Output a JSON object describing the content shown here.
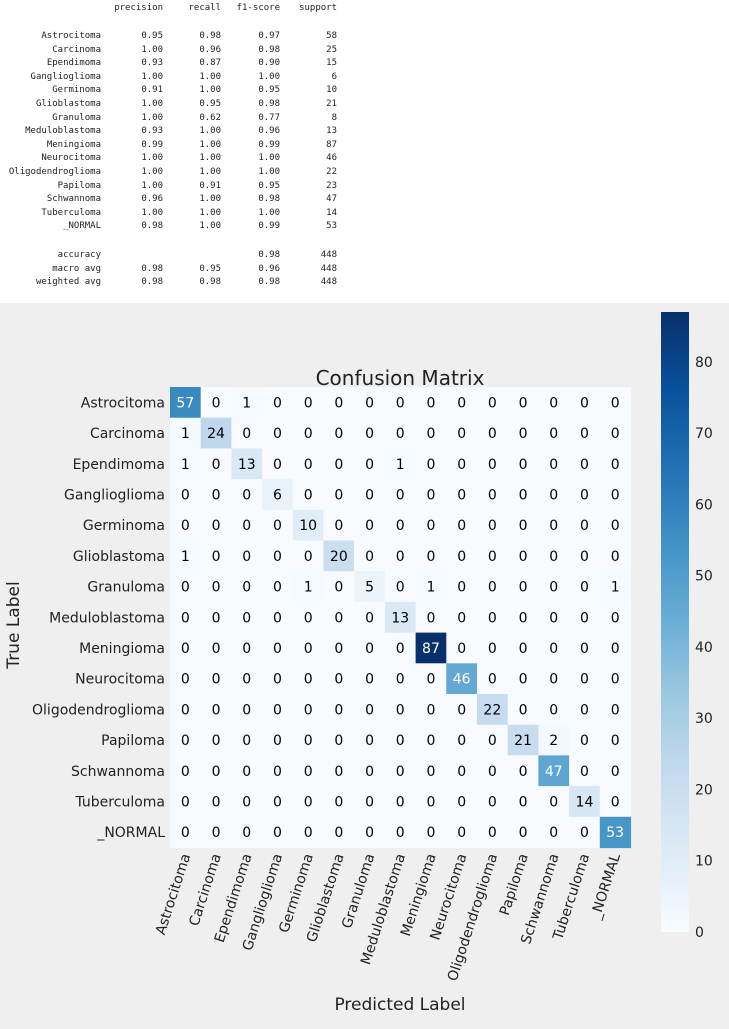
{
  "report": {
    "headers": [
      "precision",
      "recall",
      "f1-score",
      "support"
    ],
    "rows": [
      {
        "label": "Astrocitoma",
        "precision": "0.95",
        "recall": "0.98",
        "f1": "0.97",
        "support": "58"
      },
      {
        "label": "Carcinoma",
        "precision": "1.00",
        "recall": "0.96",
        "f1": "0.98",
        "support": "25"
      },
      {
        "label": "Ependimoma",
        "precision": "0.93",
        "recall": "0.87",
        "f1": "0.90",
        "support": "15"
      },
      {
        "label": "Ganglioglioma",
        "precision": "1.00",
        "recall": "1.00",
        "f1": "1.00",
        "support": "6"
      },
      {
        "label": "Germinoma",
        "precision": "0.91",
        "recall": "1.00",
        "f1": "0.95",
        "support": "10"
      },
      {
        "label": "Glioblastoma",
        "precision": "1.00",
        "recall": "0.95",
        "f1": "0.98",
        "support": "21"
      },
      {
        "label": "Granuloma",
        "precision": "1.00",
        "recall": "0.62",
        "f1": "0.77",
        "support": "8"
      },
      {
        "label": "Meduloblastoma",
        "precision": "0.93",
        "recall": "1.00",
        "f1": "0.96",
        "support": "13"
      },
      {
        "label": "Meningioma",
        "precision": "0.99",
        "recall": "1.00",
        "f1": "0.99",
        "support": "87"
      },
      {
        "label": "Neurocitoma",
        "precision": "1.00",
        "recall": "1.00",
        "f1": "1.00",
        "support": "46"
      },
      {
        "label": "Oligodendroglioma",
        "precision": "1.00",
        "recall": "1.00",
        "f1": "1.00",
        "support": "22"
      },
      {
        "label": "Papiloma",
        "precision": "1.00",
        "recall": "0.91",
        "f1": "0.95",
        "support": "23"
      },
      {
        "label": "Schwannoma",
        "precision": "0.96",
        "recall": "1.00",
        "f1": "0.98",
        "support": "47"
      },
      {
        "label": "Tuberculoma",
        "precision": "1.00",
        "recall": "1.00",
        "f1": "1.00",
        "support": "14"
      },
      {
        "label": "_NORMAL",
        "precision": "0.98",
        "recall": "1.00",
        "f1": "0.99",
        "support": "53"
      }
    ],
    "summary": [
      {
        "label": "accuracy",
        "precision": "",
        "recall": "",
        "f1": "0.98",
        "support": "448"
      },
      {
        "label": "macro avg",
        "precision": "0.98",
        "recall": "0.95",
        "f1": "0.96",
        "support": "448"
      },
      {
        "label": "weighted avg",
        "precision": "0.98",
        "recall": "0.98",
        "f1": "0.98",
        "support": "448"
      }
    ]
  },
  "chart_data": {
    "type": "heatmap",
    "title": "Confusion Matrix",
    "xlabel": "Predicted Label",
    "ylabel": "True Label",
    "labels": [
      "Astrocitoma",
      "Carcinoma",
      "Ependimoma",
      "Ganglioglioma",
      "Germinoma",
      "Glioblastoma",
      "Granuloma",
      "Meduloblastoma",
      "Meningioma",
      "Neurocitoma",
      "Oligodendroglioma",
      "Papiloma",
      "Schwannoma",
      "Tuberculoma",
      "_NORMAL"
    ],
    "matrix": [
      [
        57,
        0,
        1,
        0,
        0,
        0,
        0,
        0,
        0,
        0,
        0,
        0,
        0,
        0,
        0
      ],
      [
        1,
        24,
        0,
        0,
        0,
        0,
        0,
        0,
        0,
        0,
        0,
        0,
        0,
        0,
        0
      ],
      [
        1,
        0,
        13,
        0,
        0,
        0,
        0,
        1,
        0,
        0,
        0,
        0,
        0,
        0,
        0
      ],
      [
        0,
        0,
        0,
        6,
        0,
        0,
        0,
        0,
        0,
        0,
        0,
        0,
        0,
        0,
        0
      ],
      [
        0,
        0,
        0,
        0,
        10,
        0,
        0,
        0,
        0,
        0,
        0,
        0,
        0,
        0,
        0
      ],
      [
        1,
        0,
        0,
        0,
        0,
        20,
        0,
        0,
        0,
        0,
        0,
        0,
        0,
        0,
        0
      ],
      [
        0,
        0,
        0,
        0,
        1,
        0,
        5,
        0,
        1,
        0,
        0,
        0,
        0,
        0,
        1
      ],
      [
        0,
        0,
        0,
        0,
        0,
        0,
        0,
        13,
        0,
        0,
        0,
        0,
        0,
        0,
        0
      ],
      [
        0,
        0,
        0,
        0,
        0,
        0,
        0,
        0,
        87,
        0,
        0,
        0,
        0,
        0,
        0
      ],
      [
        0,
        0,
        0,
        0,
        0,
        0,
        0,
        0,
        0,
        46,
        0,
        0,
        0,
        0,
        0
      ],
      [
        0,
        0,
        0,
        0,
        0,
        0,
        0,
        0,
        0,
        0,
        22,
        0,
        0,
        0,
        0
      ],
      [
        0,
        0,
        0,
        0,
        0,
        0,
        0,
        0,
        0,
        0,
        0,
        21,
        2,
        0,
        0
      ],
      [
        0,
        0,
        0,
        0,
        0,
        0,
        0,
        0,
        0,
        0,
        0,
        0,
        47,
        0,
        0
      ],
      [
        0,
        0,
        0,
        0,
        0,
        0,
        0,
        0,
        0,
        0,
        0,
        0,
        0,
        14,
        0
      ],
      [
        0,
        0,
        0,
        0,
        0,
        0,
        0,
        0,
        0,
        0,
        0,
        0,
        0,
        0,
        53
      ]
    ],
    "colorbar": {
      "range": [
        0,
        87
      ],
      "ticks": [
        0,
        10,
        20,
        30,
        40,
        50,
        60,
        70,
        80
      ]
    },
    "colormap": "Blues",
    "colors": {
      "low": "#f7fbff",
      "high": "#08306b",
      "text_dark": "#000000",
      "text_light": "#ffffff",
      "panel_bg": "#efefef"
    },
    "grid": false
  }
}
